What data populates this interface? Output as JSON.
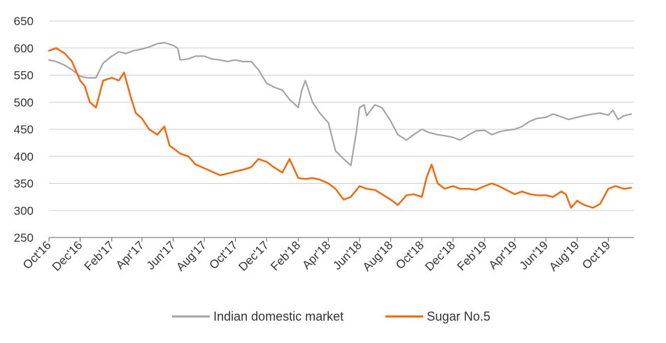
{
  "chart_data": {
    "type": "line",
    "title": "",
    "xlabel": "",
    "ylabel": "",
    "ylim": [
      250,
      650
    ],
    "yticks": [
      250,
      300,
      350,
      400,
      450,
      500,
      550,
      600,
      650
    ],
    "ytick_labels": [
      "250",
      "300",
      "350",
      "400",
      "450",
      "500",
      "550",
      "600",
      "650"
    ],
    "x_range": [
      "2016-10-01",
      "2019-11-20"
    ],
    "xtick_labels": [
      "Oct'16",
      "Dec'16",
      "Feb'17",
      "Apr'17",
      "Jun'17",
      "Aug'17",
      "Oct'17",
      "Dec'17",
      "Feb'18",
      "Apr'18",
      "Jun'18",
      "Aug'18",
      "Oct'18",
      "Dec'18",
      "Feb'19",
      "Apr'19",
      "Jun'19",
      "Aug'19",
      "Oct'19"
    ],
    "xtick_dates": [
      "2016-10-01",
      "2016-12-01",
      "2017-02-01",
      "2017-04-01",
      "2017-06-01",
      "2017-08-01",
      "2017-10-01",
      "2017-12-01",
      "2018-02-01",
      "2018-04-01",
      "2018-06-01",
      "2018-08-01",
      "2018-10-01",
      "2018-12-01",
      "2019-02-01",
      "2019-04-01",
      "2019-06-01",
      "2019-08-01",
      "2019-10-01"
    ],
    "grid": true,
    "legend_position": "bottom",
    "colors": {
      "indian": "#a5a5a5",
      "sugar": "#ff6200"
    },
    "series": [
      {
        "name": "Indian domestic market",
        "color": "#a5a5a5",
        "x": [
          "2016-10-01",
          "2016-10-15",
          "2016-11-01",
          "2016-11-15",
          "2016-12-01",
          "2016-12-15",
          "2017-01-01",
          "2017-01-15",
          "2017-02-01",
          "2017-02-15",
          "2017-03-01",
          "2017-03-15",
          "2017-04-01",
          "2017-04-15",
          "2017-05-01",
          "2017-05-15",
          "2017-06-01",
          "2017-06-10",
          "2017-06-15",
          "2017-07-01",
          "2017-07-15",
          "2017-08-01",
          "2017-08-15",
          "2017-09-01",
          "2017-09-15",
          "2017-10-01",
          "2017-10-15",
          "2017-11-01",
          "2017-11-15",
          "2017-12-01",
          "2017-12-15",
          "2018-01-01",
          "2018-01-15",
          "2018-02-01",
          "2018-02-08",
          "2018-02-15",
          "2018-03-01",
          "2018-03-15",
          "2018-04-01",
          "2018-04-15",
          "2018-05-01",
          "2018-05-15",
          "2018-05-25",
          "2018-06-01",
          "2018-06-10",
          "2018-06-15",
          "2018-07-01",
          "2018-07-15",
          "2018-08-01",
          "2018-08-15",
          "2018-09-01",
          "2018-09-15",
          "2018-10-01",
          "2018-10-15",
          "2018-11-01",
          "2018-11-15",
          "2018-12-01",
          "2018-12-15",
          "2019-01-01",
          "2019-01-15",
          "2019-02-01",
          "2019-02-15",
          "2019-03-01",
          "2019-03-15",
          "2019-04-01",
          "2019-04-15",
          "2019-05-01",
          "2019-05-15",
          "2019-06-01",
          "2019-06-15",
          "2019-07-01",
          "2019-07-15",
          "2019-08-01",
          "2019-08-15",
          "2019-09-01",
          "2019-09-15",
          "2019-10-01",
          "2019-10-10",
          "2019-10-20",
          "2019-11-01",
          "2019-11-15"
        ],
        "values": [
          578,
          575,
          568,
          560,
          548,
          545,
          545,
          572,
          585,
          593,
          590,
          595,
          598,
          602,
          608,
          610,
          605,
          600,
          578,
          580,
          585,
          585,
          580,
          578,
          575,
          578,
          575,
          575,
          560,
          535,
          528,
          522,
          505,
          490,
          522,
          540,
          500,
          480,
          462,
          410,
          395,
          383,
          440,
          490,
          495,
          475,
          495,
          490,
          465,
          440,
          430,
          440,
          450,
          444,
          440,
          438,
          435,
          430,
          440,
          447,
          448,
          440,
          445,
          448,
          450,
          455,
          465,
          470,
          472,
          478,
          473,
          468,
          472,
          475,
          478,
          480,
          476,
          485,
          468,
          475,
          478
        ]
      },
      {
        "name": "Sugar No.5",
        "color": "#ff6200",
        "x": [
          "2016-10-01",
          "2016-10-15",
          "2016-11-01",
          "2016-11-15",
          "2016-12-01",
          "2016-12-10",
          "2016-12-20",
          "2017-01-01",
          "2017-01-15",
          "2017-02-01",
          "2017-02-15",
          "2017-02-25",
          "2017-03-10",
          "2017-03-20",
          "2017-04-01",
          "2017-04-15",
          "2017-05-01",
          "2017-05-15",
          "2017-05-25",
          "2017-06-01",
          "2017-06-15",
          "2017-07-01",
          "2017-07-15",
          "2017-08-01",
          "2017-08-15",
          "2017-09-01",
          "2017-09-15",
          "2017-10-01",
          "2017-10-15",
          "2017-11-01",
          "2017-11-15",
          "2017-12-01",
          "2017-12-15",
          "2018-01-01",
          "2018-01-15",
          "2018-02-01",
          "2018-02-15",
          "2018-03-01",
          "2018-03-15",
          "2018-04-01",
          "2018-04-15",
          "2018-05-01",
          "2018-05-15",
          "2018-06-01",
          "2018-06-15",
          "2018-07-01",
          "2018-07-15",
          "2018-08-01",
          "2018-08-15",
          "2018-09-01",
          "2018-09-15",
          "2018-10-01",
          "2018-10-10",
          "2018-10-20",
          "2018-11-01",
          "2018-11-15",
          "2018-12-01",
          "2018-12-15",
          "2019-01-01",
          "2019-01-15",
          "2019-02-01",
          "2019-02-15",
          "2019-03-01",
          "2019-03-15",
          "2019-04-01",
          "2019-04-15",
          "2019-05-01",
          "2019-05-15",
          "2019-06-01",
          "2019-06-15",
          "2019-07-01",
          "2019-07-10",
          "2019-07-20",
          "2019-08-01",
          "2019-08-15",
          "2019-09-01",
          "2019-09-15",
          "2019-10-01",
          "2019-10-15",
          "2019-11-01",
          "2019-11-15"
        ],
        "values": [
          595,
          600,
          590,
          575,
          540,
          530,
          500,
          490,
          540,
          545,
          540,
          555,
          510,
          480,
          470,
          450,
          440,
          455,
          420,
          415,
          405,
          400,
          385,
          378,
          372,
          365,
          368,
          372,
          375,
          380,
          395,
          390,
          380,
          370,
          395,
          360,
          358,
          360,
          357,
          350,
          340,
          320,
          325,
          345,
          340,
          338,
          330,
          320,
          310,
          328,
          330,
          325,
          360,
          385,
          350,
          340,
          345,
          340,
          340,
          338,
          345,
          350,
          345,
          338,
          330,
          335,
          330,
          328,
          328,
          325,
          335,
          330,
          305,
          318,
          310,
          305,
          312,
          340,
          345,
          340,
          342
        ]
      }
    ]
  }
}
